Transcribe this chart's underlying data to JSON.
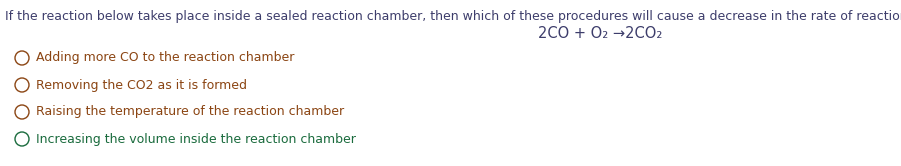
{
  "background_color": "#ffffff",
  "question_text": "If the reaction below takes place inside a sealed reaction chamber, then which of these procedures will cause a decrease in the rate of reaction?",
  "equation_text": "2CO + O₂ →2CO₂",
  "options": [
    "Adding more CO to the reaction chamber",
    "Removing the CO2 as it is formed",
    "Raising the temperature of the reaction chamber",
    "Increasing the volume inside the reaction chamber"
  ],
  "question_color": "#3d3d6b",
  "equation_color": "#3d3d6b",
  "option_color_1": "#8b4513",
  "option_color_2": "#8b4513",
  "option_color_3": "#8b4513",
  "option_color_4": "#1a6b3d",
  "question_fontsize": 9.0,
  "equation_fontsize": 10.5,
  "option_fontsize": 9.0,
  "fig_width": 9.01,
  "fig_height": 1.66,
  "dpi": 100
}
